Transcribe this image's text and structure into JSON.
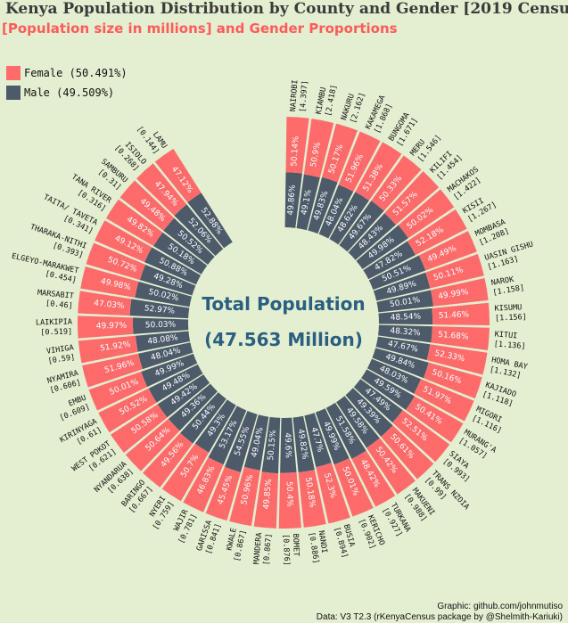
{
  "header": {
    "title": "Kenya Population Distribution by County and Gender [2019 Census]",
    "subtitle": "[Population size in millions] and Gender Proportions"
  },
  "legend": [
    {
      "label": "Female (50.491%)",
      "color": "#ff6b6b"
    },
    {
      "label": "Male (49.509%)",
      "color": "#4c5a6a"
    }
  ],
  "center": {
    "line1": "Total Population",
    "line2": "(47.563 Million)",
    "color": "#2a5f82"
  },
  "footer": {
    "credit": "Graphic: github.com/johnmutiso",
    "source": "Data: V3  T2.3 (rKenyaCensus package by @Shelmith-Kariuki)"
  },
  "chart_data": {
    "type": "radial-stacked-bar",
    "title": "Kenya Population Distribution by County and Gender [2019 Census]",
    "subtitle": "[Population size in millions] and Gender Proportions",
    "series_names": [
      "Female",
      "Male"
    ],
    "colors": {
      "female": "#ff6b6b",
      "male": "#4c5a6a"
    },
    "counties": [
      {
        "name": "NAIROBI",
        "pop": 4.397,
        "female": 50.14,
        "male": 49.86
      },
      {
        "name": "KIAMBU",
        "pop": 2.418,
        "female": 50.9,
        "male": 49.1
      },
      {
        "name": "NAKURU",
        "pop": 2.162,
        "female": 50.17,
        "male": 49.83
      },
      {
        "name": "KAKAMEGA",
        "pop": 1.868,
        "female": 51.96,
        "male": 48.04
      },
      {
        "name": "BUNGOMA",
        "pop": 1.671,
        "female": 51.38,
        "male": 48.62
      },
      {
        "name": "MERU",
        "pop": 1.546,
        "female": 50.33,
        "male": 49.67
      },
      {
        "name": "KILIFI",
        "pop": 1.454,
        "female": 51.57,
        "male": 48.43
      },
      {
        "name": "MACHAKOS",
        "pop": 1.422,
        "female": 50.02,
        "male": 49.98
      },
      {
        "name": "KISII",
        "pop": 1.267,
        "female": 52.18,
        "male": 47.82
      },
      {
        "name": "MOMBASA",
        "pop": 1.208,
        "female": 49.49,
        "male": 50.51
      },
      {
        "name": "UASIN GISHU",
        "pop": 1.163,
        "female": 50.11,
        "male": 49.89
      },
      {
        "name": "NAROK",
        "pop": 1.158,
        "female": 49.99,
        "male": 50.01
      },
      {
        "name": "KISUMU",
        "pop": 1.156,
        "female": 51.46,
        "male": 48.54
      },
      {
        "name": "KITUI",
        "pop": 1.136,
        "female": 51.68,
        "male": 48.32
      },
      {
        "name": "HOMA BAY",
        "pop": 1.132,
        "female": 52.33,
        "male": 47.67
      },
      {
        "name": "KAJIADO",
        "pop": 1.118,
        "female": 50.16,
        "male": 49.84
      },
      {
        "name": "MIGORI",
        "pop": 1.116,
        "female": 51.97,
        "male": 48.03
      },
      {
        "name": "MURANG'A",
        "pop": 1.057,
        "female": 50.41,
        "male": 49.59
      },
      {
        "name": "SIAYA",
        "pop": 0.993,
        "female": 52.51,
        "male": 47.49
      },
      {
        "name": "TRANS NZOIA",
        "pop": 0.99,
        "female": 50.61,
        "male": 49.39
      },
      {
        "name": "MAKUENI",
        "pop": 0.988,
        "female": 50.42,
        "male": 49.58
      },
      {
        "name": "TURKANA",
        "pop": 0.927,
        "female": 48.42,
        "male": 51.58
      },
      {
        "name": "KERICHO",
        "pop": 0.902,
        "female": 50.01,
        "male": 49.99
      },
      {
        "name": "BUSIA",
        "pop": 0.894,
        "female": 52.3,
        "male": 47.7
      },
      {
        "name": "NANDI",
        "pop": 0.886,
        "female": 50.18,
        "male": 49.82
      },
      {
        "name": "BOMET",
        "pop": 0.876,
        "female": 50.4,
        "male": 49.6
      },
      {
        "name": "MANDERA",
        "pop": 0.867,
        "female": 49.85,
        "male": 50.15
      },
      {
        "name": "KWALE",
        "pop": 0.867,
        "female": 50.96,
        "male": 49.04
      },
      {
        "name": "GARISSA",
        "pop": 0.841,
        "female": 45.45,
        "male": 54.55
      },
      {
        "name": "WAJIR",
        "pop": 0.781,
        "female": 46.83,
        "male": 53.17
      },
      {
        "name": "NYERI",
        "pop": 0.759,
        "female": 50.7,
        "male": 49.3
      },
      {
        "name": "BARINGO",
        "pop": 0.667,
        "female": 49.56,
        "male": 50.44
      },
      {
        "name": "NYANDARUA",
        "pop": 0.638,
        "female": 50.64,
        "male": 49.36
      },
      {
        "name": "WEST POKOT",
        "pop": 0.621,
        "female": 50.58,
        "male": 49.42
      },
      {
        "name": "KIRINYAGA",
        "pop": 0.61,
        "female": 50.52,
        "male": 49.48
      },
      {
        "name": "EMBU",
        "pop": 0.609,
        "female": 50.01,
        "male": 49.99
      },
      {
        "name": "NYAMIRA",
        "pop": 0.606,
        "female": 51.96,
        "male": 48.04
      },
      {
        "name": "VIHIGA",
        "pop": 0.59,
        "female": 51.92,
        "male": 48.08
      },
      {
        "name": "LAIKIPIA",
        "pop": 0.519,
        "female": 49.97,
        "male": 50.03
      },
      {
        "name": "MARSABIT",
        "pop": 0.46,
        "female": 47.03,
        "male": 52.97
      },
      {
        "name": "ELGEYO-MARAKWET",
        "pop": 0.454,
        "female": 49.98,
        "male": 50.02
      },
      {
        "name": "THARAKA-NITHI",
        "pop": 0.393,
        "female": 50.72,
        "male": 49.28
      },
      {
        "name": "TAITA/ TAVETA",
        "pop": 0.341,
        "female": 49.12,
        "male": 50.88
      },
      {
        "name": "TANA RIVER",
        "pop": 0.316,
        "female": 49.82,
        "male": 50.18
      },
      {
        "name": "SAMBURU",
        "pop": 0.31,
        "female": 49.48,
        "male": 50.52
      },
      {
        "name": "ISIOLO",
        "pop": 0.268,
        "female": 47.94,
        "male": 52.06
      },
      {
        "name": "LAMU",
        "pop": 0.144,
        "female": 47.12,
        "male": 52.88
      }
    ]
  }
}
